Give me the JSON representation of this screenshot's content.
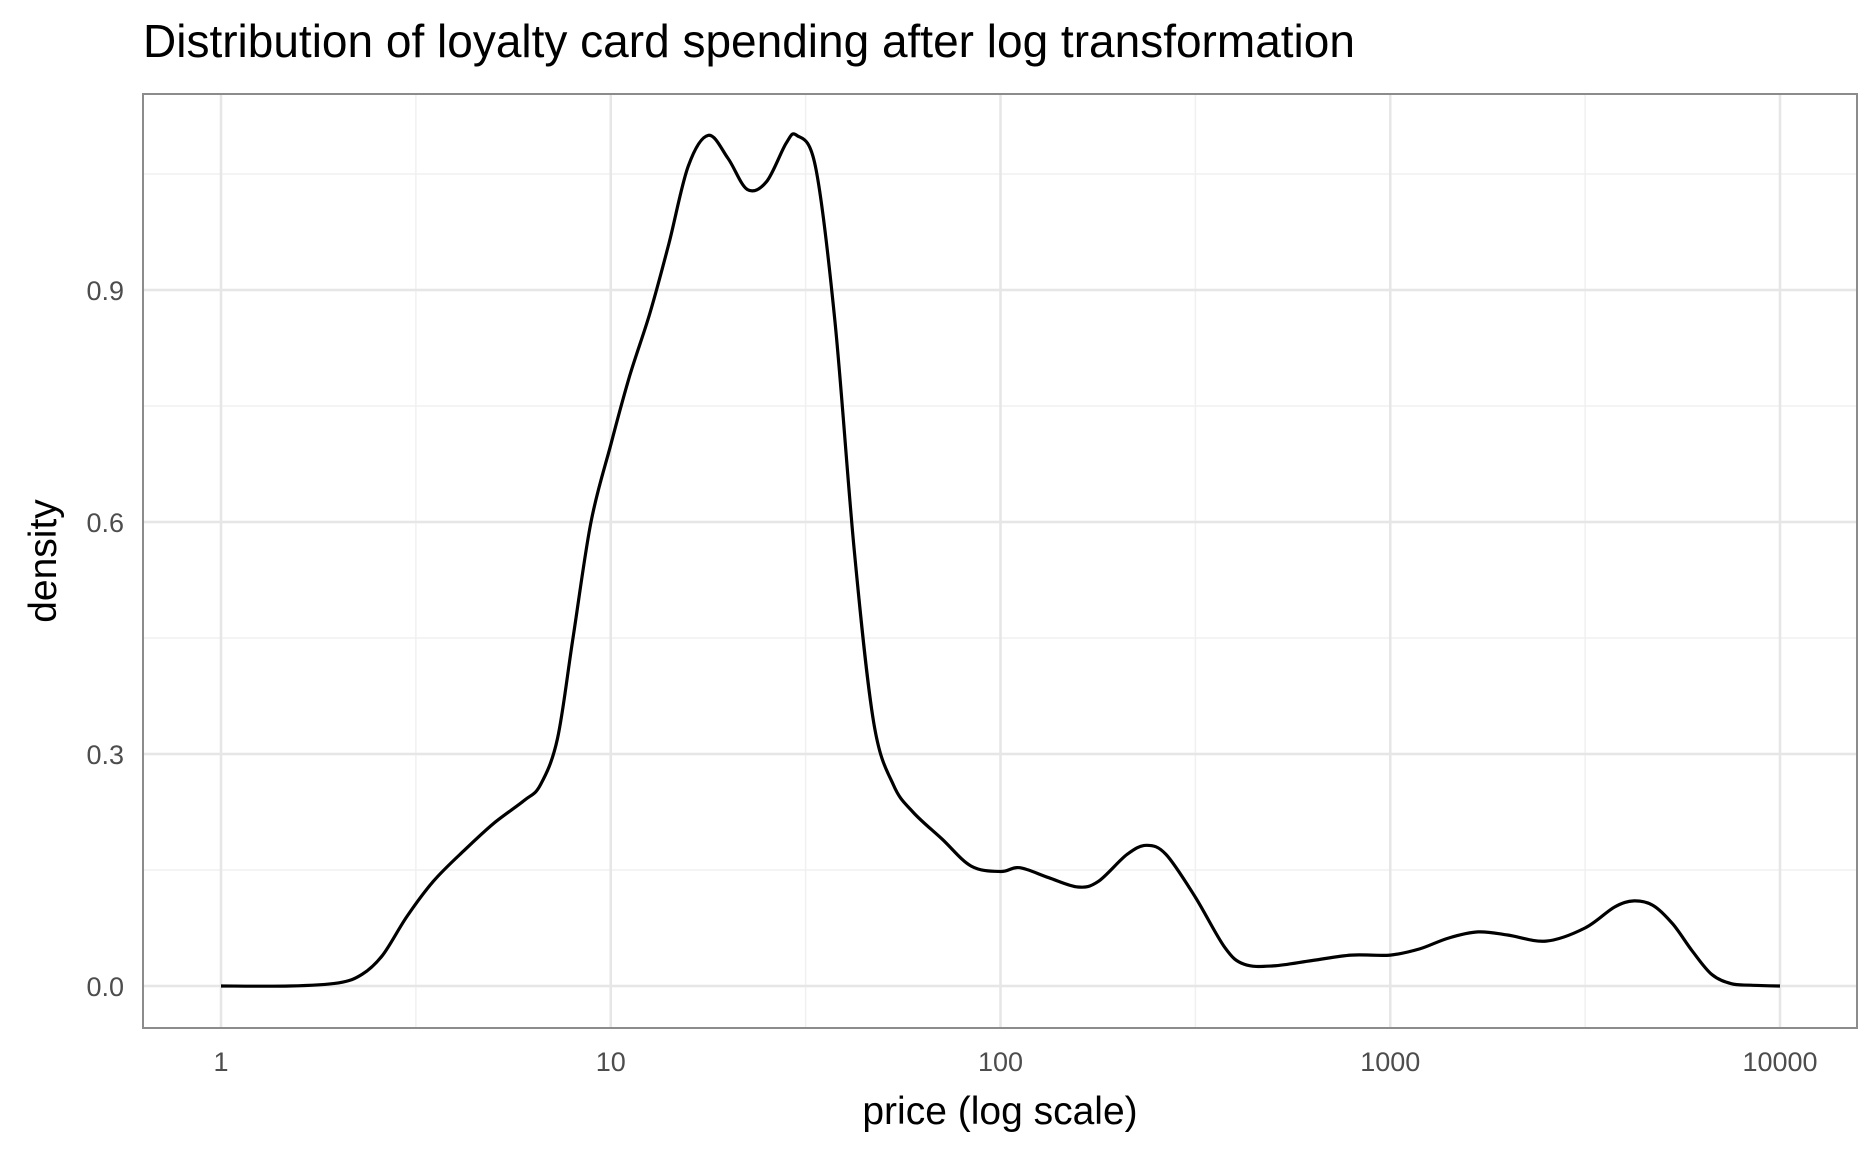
{
  "chart_data": {
    "type": "area",
    "title": "Distribution of loyalty card spending after log transformation",
    "xlabel": "price (log scale)",
    "ylabel": "density",
    "x_scale": "log10",
    "xlim": [
      1,
      10000
    ],
    "ylim": [
      0,
      1.1
    ],
    "x_ticks": [
      1,
      10,
      100,
      1000,
      10000
    ],
    "x_tick_labels": [
      "1",
      "10",
      "100",
      "1000",
      "10000"
    ],
    "y_ticks": [
      0,
      0.3,
      0.6,
      0.9
    ],
    "y_tick_labels": [
      "0.0",
      "0.3",
      "0.6",
      "0.9"
    ],
    "grid": true,
    "legend": "none",
    "series": [
      {
        "color": "#000000",
        "points": [
          [
            1,
            0
          ],
          [
            1.5,
            0
          ],
          [
            2,
            0.004
          ],
          [
            2.3,
            0.015
          ],
          [
            2.6,
            0.04
          ],
          [
            3.0,
            0.09
          ],
          [
            3.5,
            0.135
          ],
          [
            4.2,
            0.175
          ],
          [
            5.0,
            0.21
          ],
          [
            6.0,
            0.24
          ],
          [
            6.6,
            0.26
          ],
          [
            7.3,
            0.32
          ],
          [
            8.0,
            0.45
          ],
          [
            8.9,
            0.6
          ],
          [
            10.0,
            0.7
          ],
          [
            11.2,
            0.79
          ],
          [
            12.6,
            0.87
          ],
          [
            14.1,
            0.96
          ],
          [
            15.8,
            1.06
          ],
          [
            17.8,
            1.1
          ],
          [
            20.0,
            1.07
          ],
          [
            22.4,
            1.03
          ],
          [
            25.1,
            1.04
          ],
          [
            28.2,
            1.09
          ],
          [
            30.0,
            1.1
          ],
          [
            33.5,
            1.06
          ],
          [
            37.6,
            0.86
          ],
          [
            42.2,
            0.56
          ],
          [
            47.3,
            0.34
          ],
          [
            53.1,
            0.26
          ],
          [
            59.6,
            0.225
          ],
          [
            70.8,
            0.19
          ],
          [
            84.1,
            0.155
          ],
          [
            100,
            0.148
          ],
          [
            112,
            0.153
          ],
          [
            133,
            0.14
          ],
          [
            158,
            0.128
          ],
          [
            178,
            0.135
          ],
          [
            211,
            0.17
          ],
          [
            237,
            0.182
          ],
          [
            266,
            0.17
          ],
          [
            316,
            0.115
          ],
          [
            376,
            0.05
          ],
          [
            422,
            0.028
          ],
          [
            501,
            0.026
          ],
          [
            631,
            0.033
          ],
          [
            794,
            0.04
          ],
          [
            1000,
            0.04
          ],
          [
            1190,
            0.048
          ],
          [
            1410,
            0.062
          ],
          [
            1680,
            0.07
          ],
          [
            2000,
            0.066
          ],
          [
            2510,
            0.058
          ],
          [
            3160,
            0.075
          ],
          [
            3760,
            0.102
          ],
          [
            4220,
            0.11
          ],
          [
            4730,
            0.104
          ],
          [
            5310,
            0.08
          ],
          [
            5960,
            0.045
          ],
          [
            6680,
            0.015
          ],
          [
            7500,
            0.003
          ],
          [
            8410,
            0.001
          ],
          [
            10000,
            0
          ]
        ]
      }
    ]
  }
}
